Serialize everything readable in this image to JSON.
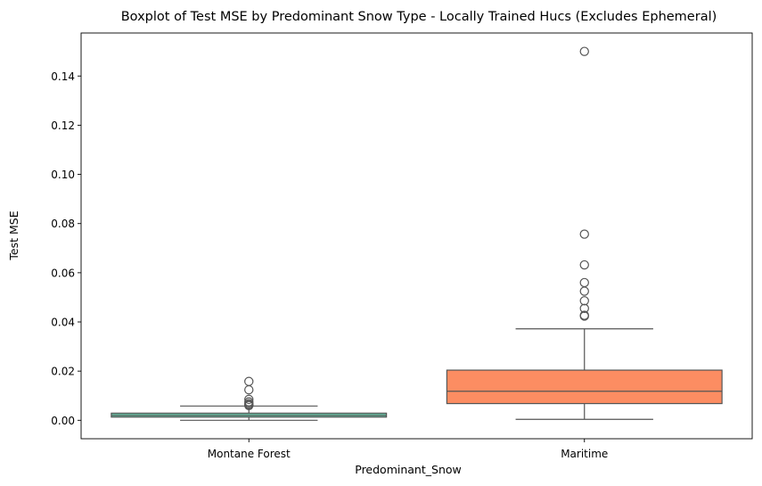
{
  "chart_data": {
    "type": "boxplot",
    "title": "Boxplot of Test MSE by Predominant Snow Type - Locally Trained Hucs (Excludes Ephemeral)",
    "xlabel": "Predominant_Snow",
    "ylabel": "Test MSE",
    "ylim": [
      -0.0075,
      0.1575
    ],
    "yticks": [
      0.0,
      0.02,
      0.04,
      0.06,
      0.08,
      0.1,
      0.12,
      0.14
    ],
    "ytick_labels": [
      "0.00",
      "0.02",
      "0.04",
      "0.06",
      "0.08",
      "0.10",
      "0.12",
      "0.14"
    ],
    "grid": false,
    "categories": [
      "Montane Forest",
      "Maritime"
    ],
    "boxes": [
      {
        "category": "Montane Forest",
        "color": "#66c2a5",
        "whisker_low": 0.0,
        "q1": 0.0013,
        "median": 0.002,
        "q3": 0.0029,
        "whisker_high": 0.0058,
        "outliers": [
          0.0158,
          0.0124,
          0.0085,
          0.0075,
          0.0068,
          0.0063,
          0.006
        ]
      },
      {
        "category": "Maritime",
        "color": "#fc8d62",
        "whisker_low": 0.0004,
        "q1": 0.0068,
        "median": 0.0118,
        "q3": 0.0204,
        "whisker_high": 0.0372,
        "outliers": [
          0.15,
          0.0757,
          0.0632,
          0.056,
          0.0525,
          0.0486,
          0.0455,
          0.0427,
          0.0424
        ]
      }
    ]
  }
}
